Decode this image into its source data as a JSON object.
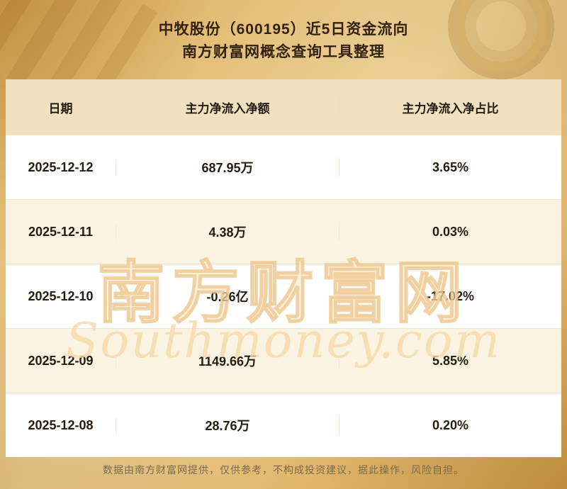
{
  "chart_data": {
    "type": "table",
    "title": "中牧股份（600195）近5日资金流向",
    "subtitle": "南方财富网概念查询工具整理",
    "columns": [
      "日期",
      "主力净流入净额",
      "主力净流入净占比"
    ],
    "rows": [
      {
        "date": "2025-12-12",
        "net_inflow": "687.95万",
        "ratio": "3.65%"
      },
      {
        "date": "2025-12-11",
        "net_inflow": "4.38万",
        "ratio": "0.03%"
      },
      {
        "date": "2025-12-10",
        "net_inflow": "-0.26亿",
        "ratio": "-17.02%"
      },
      {
        "date": "2025-12-09",
        "net_inflow": "1149.66万",
        "ratio": "5.85%"
      },
      {
        "date": "2025-12-08",
        "net_inflow": "28.76万",
        "ratio": "0.20%"
      }
    ]
  },
  "watermark": {
    "cn": "南方财富网",
    "en": "Southmoney.com"
  },
  "footer": {
    "disclaimer": "数据由南方财富网提供，仅供参考，不构成投资建议，据此操作，风险自担。"
  },
  "colors": {
    "background_gold": "#e0b66c",
    "table_header_bg": "#f2e1c1",
    "row_alt_bg": "#fbf3e2",
    "row_bg": "#ffffff",
    "text_dark": "#241c10",
    "footer_text": "#7c6a4a"
  }
}
